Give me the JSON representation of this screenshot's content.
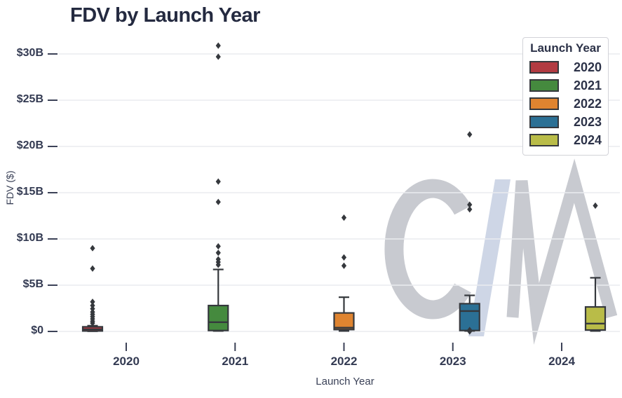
{
  "page": {
    "title": "FDV by Launch Year"
  },
  "chart_data": {
    "type": "box",
    "title": "FDV by Launch Year",
    "xlabel": "Launch Year",
    "ylabel": "FDV ($)",
    "legend_title": "Launch Year",
    "legend_position": "upper right",
    "grid": "horizontal",
    "units": "billions of USD",
    "ylim": [
      0,
      32
    ],
    "y_ticks": [
      {
        "label": "$30B",
        "value": 30
      },
      {
        "label": "$25B",
        "value": 25
      },
      {
        "label": "$20B",
        "value": 20
      },
      {
        "label": "$15B",
        "value": 15
      },
      {
        "label": "$10B",
        "value": 10
      },
      {
        "label": "$5B",
        "value": 5
      },
      {
        "label": "$0",
        "value": 0
      }
    ],
    "x_categories": [
      "2020",
      "2021",
      "2022",
      "2023",
      "2024"
    ],
    "series": [
      {
        "year": "2020",
        "color": "#b23b42",
        "whisker_low": 0.02,
        "q1": 0.05,
        "median": 0.22,
        "q3": 0.5,
        "whisker_high": 0.62,
        "fliers": [
          0.9,
          1.1,
          1.35,
          1.6,
          1.85,
          2.1,
          2.45,
          2.8,
          3.2,
          6.8,
          9.0
        ]
      },
      {
        "year": "2021",
        "color": "#458a3e",
        "whisker_low": 0.05,
        "q1": 0.1,
        "median": 1.0,
        "q3": 2.8,
        "whisker_high": 6.7,
        "fliers": [
          7.2,
          7.5,
          7.8,
          8.5,
          9.2,
          14.0,
          16.2,
          29.7,
          30.9
        ]
      },
      {
        "year": "2022",
        "color": "#df8430",
        "whisker_low": 0.05,
        "q1": 0.2,
        "median": 0.4,
        "q3": 2.0,
        "whisker_high": 3.7,
        "fliers": [
          7.1,
          8.0,
          12.3
        ]
      },
      {
        "year": "2023",
        "color": "#2b7095",
        "whisker_low": 0.05,
        "q1": 0.1,
        "median": 2.2,
        "q3": 3.0,
        "whisker_high": 3.9,
        "fliers": [
          0.0,
          0.15,
          13.2,
          13.7,
          21.3
        ]
      },
      {
        "year": "2024",
        "color": "#b9bc48",
        "whisker_low": 0.05,
        "q1": 0.15,
        "median": 0.85,
        "q3": 2.65,
        "whisker_high": 5.8,
        "fliers": [
          13.6
        ]
      }
    ]
  },
  "watermark": {
    "icon": "cm-logo",
    "colors": {
      "letters": "#c8cad0",
      "slash": "#ced6e6"
    }
  }
}
